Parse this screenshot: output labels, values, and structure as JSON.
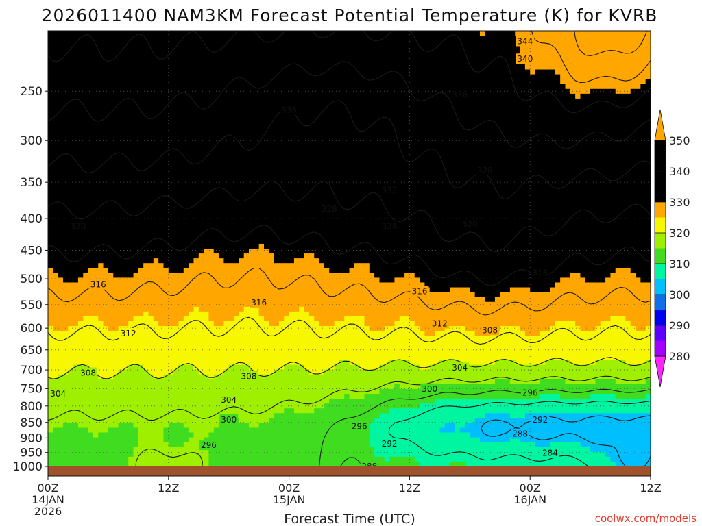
{
  "chart_data": {
    "type": "heatmap",
    "title": "2026011400 NAM3KM Forecast Potential Temperature (K) for KVRB",
    "xlabel": "Forecast Time (UTC)",
    "ylabel": "",
    "credit": "coolwx.com/models",
    "x_ticks": [
      {
        "hour": 0,
        "l1": "00Z",
        "l2": "14JAN",
        "l3": "2026"
      },
      {
        "hour": 12,
        "l1": "12Z",
        "l2": "",
        "l3": ""
      },
      {
        "hour": 24,
        "l1": "00Z",
        "l2": "15JAN",
        "l3": ""
      },
      {
        "hour": 36,
        "l1": "12Z",
        "l2": "",
        "l3": ""
      },
      {
        "hour": 48,
        "l1": "00Z",
        "l2": "16JAN",
        "l3": ""
      },
      {
        "hour": 60,
        "l1": "12Z",
        "l2": "",
        "l3": ""
      }
    ],
    "xlim": [
      0,
      60
    ],
    "y_ticks": [
      250,
      300,
      350,
      400,
      450,
      500,
      550,
      600,
      650,
      700,
      750,
      800,
      850,
      900,
      950,
      1000
    ],
    "ylim_hpa": [
      200,
      1000
    ],
    "colorbar": {
      "levels": [
        280,
        290,
        300,
        310,
        320,
        330,
        340,
        350
      ],
      "colors": [
        "#ff24ff",
        "#a300ff",
        "#5c00ff",
        "#0000f0",
        "#0f6fe8",
        "#00bfff",
        "#00f5a0",
        "#40dc20",
        "#9ef000",
        "#f7f700",
        "#ffa600"
      ]
    },
    "contour_interval_K": 4,
    "labels": [
      {
        "text": "344",
        "hour": 47.5,
        "p": 208
      },
      {
        "text": "340",
        "hour": 47.5,
        "p": 222
      },
      {
        "text": "336",
        "hour": 41.0,
        "p": 253
      },
      {
        "text": "336",
        "hour": 24.0,
        "p": 268
      },
      {
        "text": "332",
        "hour": 34.0,
        "p": 360
      },
      {
        "text": "328",
        "hour": 43.5,
        "p": 335
      },
      {
        "text": "328",
        "hour": 28.0,
        "p": 386
      },
      {
        "text": "324",
        "hour": 34.0,
        "p": 412
      },
      {
        "text": "320",
        "hour": 42.0,
        "p": 409
      },
      {
        "text": "320",
        "hour": 3.0,
        "p": 412
      },
      {
        "text": "316",
        "hour": 5.0,
        "p": 511
      },
      {
        "text": "316",
        "hour": 21.0,
        "p": 546
      },
      {
        "text": "316",
        "hour": 37.0,
        "p": 524
      },
      {
        "text": "316",
        "hour": 49.0,
        "p": 489
      },
      {
        "text": "312",
        "hour": 8.0,
        "p": 612
      },
      {
        "text": "312",
        "hour": 39.0,
        "p": 590
      },
      {
        "text": "308",
        "hour": 4.0,
        "p": 708
      },
      {
        "text": "308",
        "hour": 20.0,
        "p": 717
      },
      {
        "text": "308",
        "hour": 44.0,
        "p": 605
      },
      {
        "text": "304",
        "hour": 41.0,
        "p": 695
      },
      {
        "text": "304",
        "hour": 18.0,
        "p": 782
      },
      {
        "text": "304",
        "hour": 1.0,
        "p": 765
      },
      {
        "text": "300",
        "hour": 38.0,
        "p": 751
      },
      {
        "text": "300",
        "hour": 18.0,
        "p": 842
      },
      {
        "text": "296",
        "hour": 48.0,
        "p": 762
      },
      {
        "text": "296",
        "hour": 31.0,
        "p": 862
      },
      {
        "text": "296",
        "hour": 16.0,
        "p": 925
      },
      {
        "text": "292",
        "hour": 49.0,
        "p": 842
      },
      {
        "text": "292",
        "hour": 34.0,
        "p": 920
      },
      {
        "text": "288",
        "hour": 47.0,
        "p": 887
      },
      {
        "text": "288",
        "hour": 32.0,
        "p": 1000
      },
      {
        "text": "284",
        "hour": 50.0,
        "p": 952
      }
    ]
  }
}
